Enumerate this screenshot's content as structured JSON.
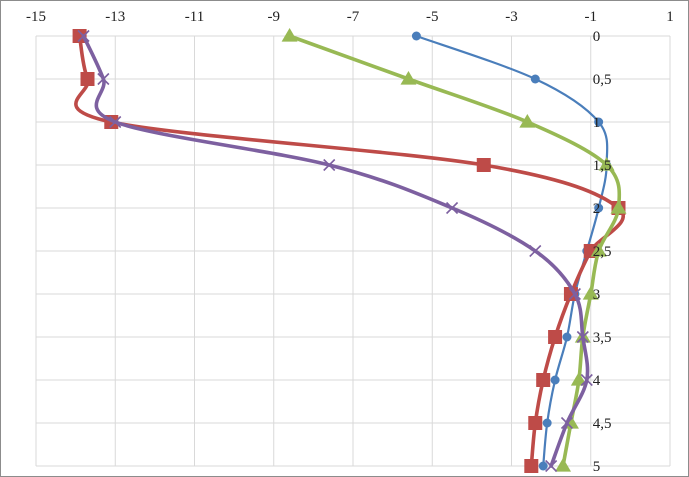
{
  "chart_data": {
    "type": "line",
    "title": "",
    "xlabel": "",
    "ylabel": "",
    "xlim": [
      -15,
      1
    ],
    "ylim": [
      5,
      0
    ],
    "x_ticks": [
      "-15",
      "-13",
      "-11",
      "-9",
      "-7",
      "-5",
      "-3",
      "-1",
      "1"
    ],
    "y_ticks": [
      "0",
      "0,5",
      "1",
      "1,5",
      "2",
      "2,5",
      "3",
      "3,5",
      "4",
      "4,5",
      "5"
    ],
    "grid": true,
    "legend": "none",
    "series": [
      {
        "marker": "circle",
        "color": "#4a7ebb",
        "points": [
          [
            -5.4,
            0
          ],
          [
            -2.4,
            0.5
          ],
          [
            -0.8,
            1
          ],
          [
            -0.6,
            1.5
          ],
          [
            -0.8,
            2
          ],
          [
            -1.1,
            2.5
          ],
          [
            -1.4,
            3
          ],
          [
            -1.6,
            3.5
          ],
          [
            -1.9,
            4
          ],
          [
            -2.1,
            4.5
          ],
          [
            -2.2,
            5
          ]
        ]
      },
      {
        "marker": "square",
        "color": "#be4b48",
        "points": [
          [
            -13.9,
            0
          ],
          [
            -13.7,
            0.5
          ],
          [
            -13.1,
            1
          ],
          [
            -3.7,
            1.5
          ],
          [
            -0.3,
            2
          ],
          [
            -1.0,
            2.5
          ],
          [
            -1.5,
            3
          ],
          [
            -1.9,
            3.5
          ],
          [
            -2.2,
            4
          ],
          [
            -2.4,
            4.5
          ],
          [
            -2.5,
            5
          ]
        ]
      },
      {
        "marker": "triangle",
        "color": "#98b954",
        "points": [
          [
            -8.6,
            0
          ],
          [
            -5.6,
            0.5
          ],
          [
            -2.6,
            1
          ],
          [
            -0.6,
            1.5
          ],
          [
            -0.3,
            2
          ],
          [
            -0.8,
            2.5
          ],
          [
            -1.0,
            3
          ],
          [
            -1.2,
            3.5
          ],
          [
            -1.3,
            4
          ],
          [
            -1.5,
            4.5
          ],
          [
            -1.7,
            5
          ]
        ]
      },
      {
        "marker": "x",
        "color": "#7d60a0",
        "points": [
          [
            -13.8,
            0
          ],
          [
            -13.3,
            0.5
          ],
          [
            -13.0,
            1
          ],
          [
            -7.6,
            1.5
          ],
          [
            -4.5,
            2
          ],
          [
            -2.4,
            2.5
          ],
          [
            -1.4,
            3
          ],
          [
            -1.2,
            3.5
          ],
          [
            -1.1,
            4
          ],
          [
            -1.6,
            4.5
          ],
          [
            -2.0,
            5
          ]
        ]
      }
    ]
  }
}
